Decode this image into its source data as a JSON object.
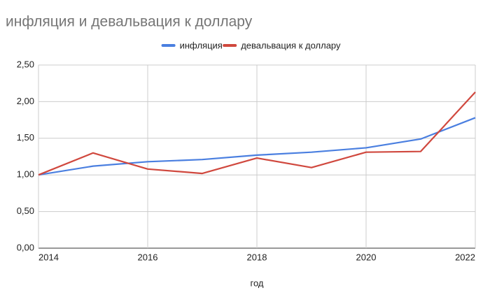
{
  "chart_data": {
    "type": "line",
    "title": "инфляция и девальвация к доллару",
    "x_label": "год",
    "x": [
      2014,
      2015,
      2016,
      2017,
      2018,
      2019,
      2020,
      2021,
      2022
    ],
    "series": [
      {
        "name": "инфляция",
        "color": "#4a7fe0",
        "values": [
          1.0,
          1.12,
          1.18,
          1.21,
          1.27,
          1.31,
          1.37,
          1.49,
          1.78
        ]
      },
      {
        "name": "девальвация к доллару",
        "color": "#d0483e",
        "values": [
          1.0,
          1.3,
          1.08,
          1.02,
          1.23,
          1.1,
          1.31,
          1.32,
          2.13
        ]
      }
    ],
    "xlim": [
      2014,
      2022
    ],
    "xticks": [
      2014,
      2016,
      2018,
      2020,
      2022
    ],
    "ylim": [
      0,
      2.5
    ],
    "yticks": [
      {
        "value": 0,
        "label": "0,00"
      },
      {
        "value": 0.5,
        "label": "0,50"
      },
      {
        "value": 1,
        "label": "1,00"
      },
      {
        "value": 1.5,
        "label": "1,50"
      },
      {
        "value": 2,
        "label": "2,00"
      },
      {
        "value": 2.5,
        "label": "2,50"
      }
    ],
    "grid": true,
    "legend": "top"
  }
}
